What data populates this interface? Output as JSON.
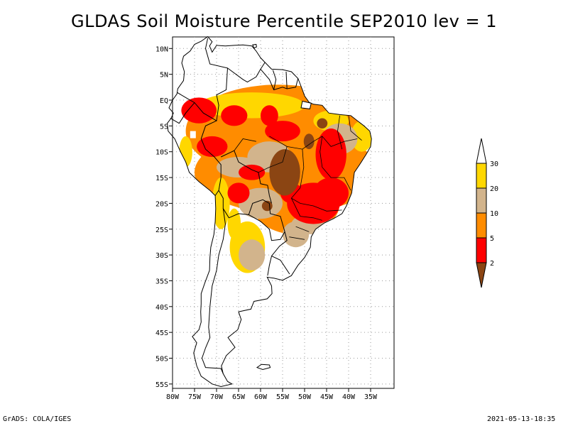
{
  "title": "GLDAS Soil Moisture Percentile SEP2010 lev = 1",
  "map": {
    "lon_range": [
      -80,
      -30
    ],
    "lat_range": [
      -56,
      12
    ],
    "lat_ticks": [
      "10N",
      "5N",
      "EQ",
      "5S",
      "10S",
      "15S",
      "20S",
      "25S",
      "30S",
      "35S",
      "40S",
      "45S",
      "50S",
      "55S"
    ],
    "lon_ticks": [
      "80W",
      "75W",
      "70W",
      "65W",
      "60W",
      "55W",
      "50W",
      "45W",
      "40W",
      "35W"
    ],
    "grid": true
  },
  "legend": {
    "labels": [
      "2",
      "5",
      "10",
      "20",
      "30"
    ],
    "colors": [
      "#8b4513",
      "#ff0000",
      "#ff8c00",
      "#d2b48c",
      "#ffd700",
      "#ffffff"
    ]
  },
  "footer": {
    "left": "GrADS: COLA/IGES",
    "right": "2021-05-13-18:35"
  }
}
